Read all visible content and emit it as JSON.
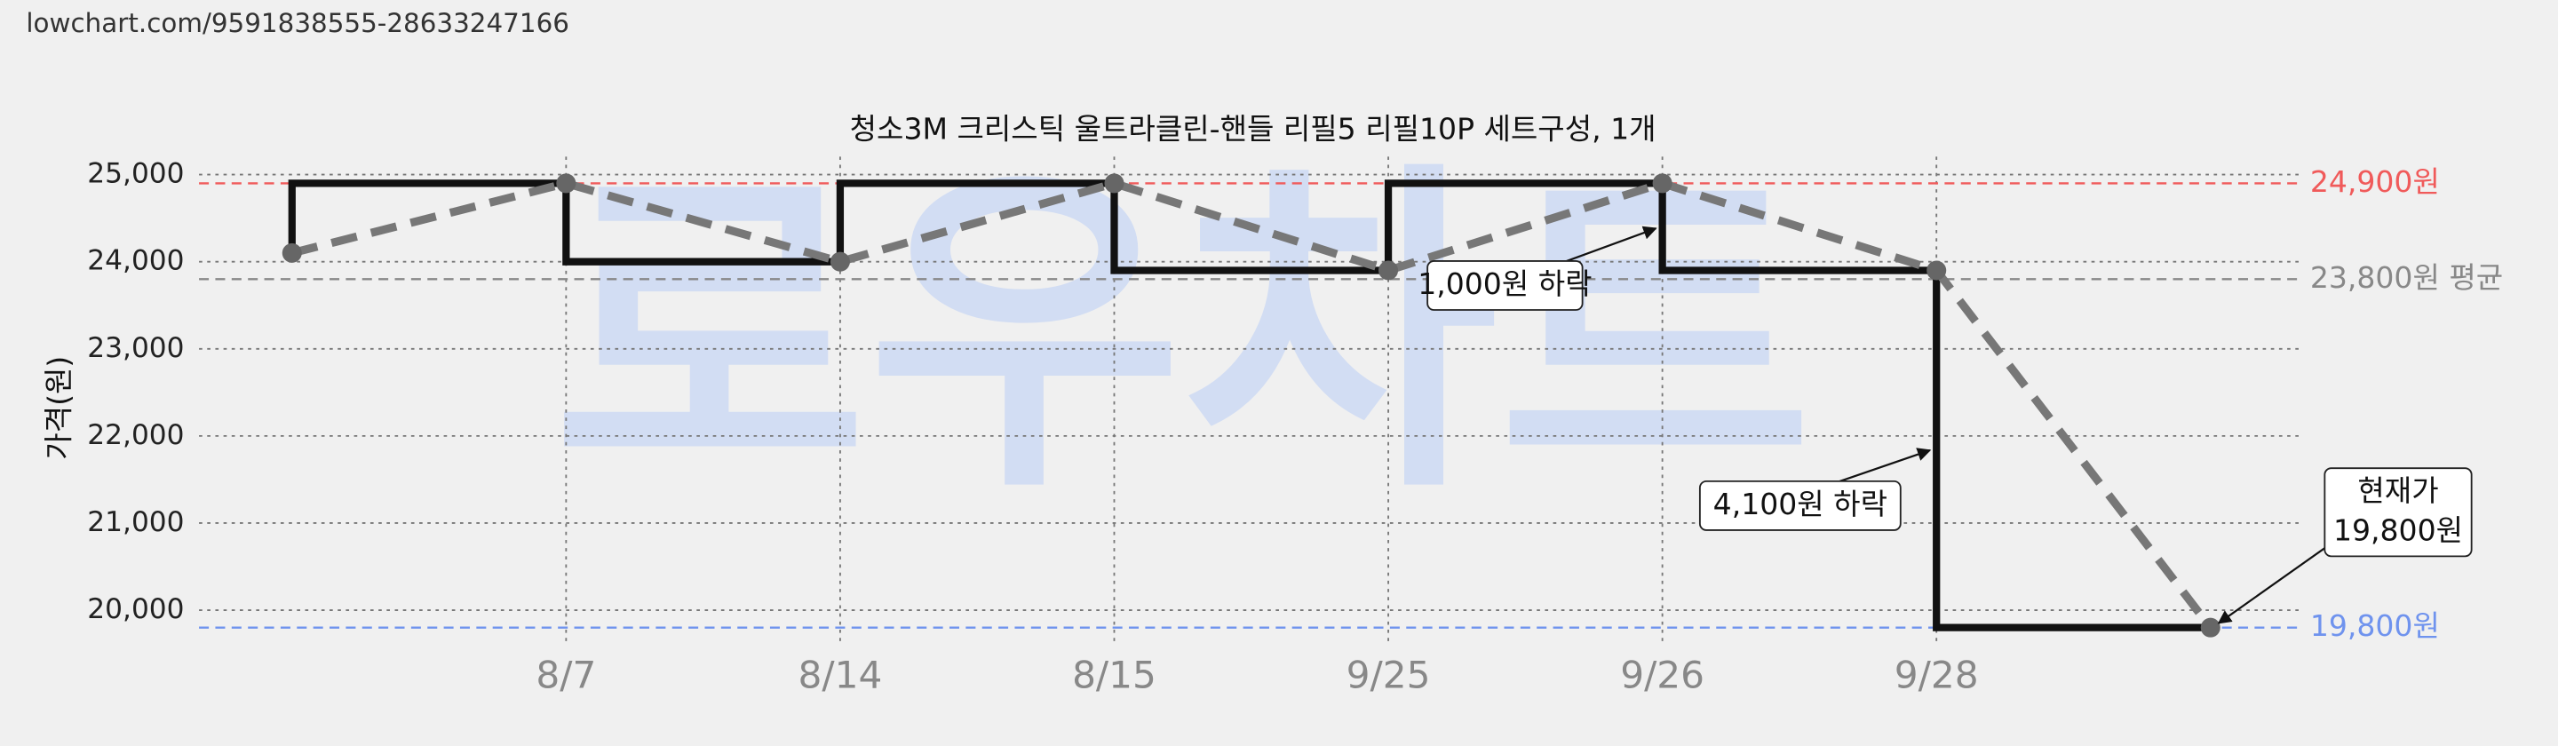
{
  "page_url": "lowchart.com/9591838555-28633247166",
  "chart_data": {
    "type": "step-line",
    "title": "청소3M 크리스틱 울트라클린-핸들 리필5 리필10P 세트구성, 1개",
    "y_label": "가격(원)",
    "watermark": "로우차트",
    "categories": [
      null,
      "8/7",
      "8/14",
      "8/15",
      "9/25",
      "9/26",
      "9/28",
      null
    ],
    "series": [
      {
        "name": "가격",
        "color": "#111111",
        "trend_color": "#777777",
        "values": [
          24100,
          24900,
          24000,
          24900,
          23900,
          24900,
          23900,
          19800
        ]
      }
    ],
    "ylim": [
      19600,
      25300
    ],
    "yticks": [
      {
        "value": 20000,
        "label": "20,000"
      },
      {
        "value": 21000,
        "label": "21,000"
      },
      {
        "value": 22000,
        "label": "22,000"
      },
      {
        "value": 23000,
        "label": "23,000"
      },
      {
        "value": 24000,
        "label": "24,000"
      },
      {
        "value": 25000,
        "label": "25,000"
      }
    ],
    "grid": true,
    "reference_lines": [
      {
        "value": 24900,
        "label": "24,900원",
        "color": "#f05a5a"
      },
      {
        "value": 23800,
        "label": "23,800원 평균",
        "color": "#888888"
      },
      {
        "value": 19800,
        "label": "19,800원",
        "color": "#6f93ee"
      }
    ],
    "annotations": [
      {
        "lines": [
          "1,000원 하락"
        ]
      },
      {
        "lines": [
          "4,100원 하락"
        ]
      },
      {
        "lines": [
          "현재가",
          "19,800원"
        ]
      }
    ]
  }
}
